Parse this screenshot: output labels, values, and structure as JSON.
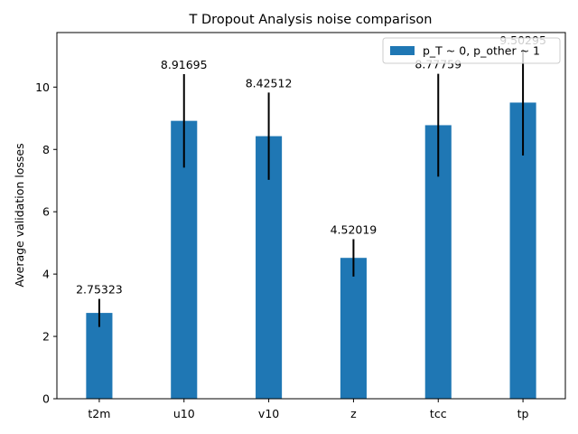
{
  "chart_data": {
    "type": "bar",
    "title": "T Dropout Analysis noise comparison",
    "xlabel": "",
    "ylabel": "Average validation losses",
    "categories": [
      "t2m",
      "u10",
      "v10",
      "z",
      "tcc",
      "tp"
    ],
    "series": [
      {
        "name": "p_T ~ 0, p_other ~ 1",
        "values": [
          2.75323,
          8.91695,
          8.42512,
          4.52019,
          8.77759,
          9.50295
        ],
        "labels": [
          "2.75323",
          "8.91695",
          "8.42512",
          "4.52019",
          "8.77759",
          "9.50295"
        ],
        "error": [
          0.45,
          1.5,
          1.4,
          0.6,
          1.65,
          1.7
        ],
        "color": "#1f77b4"
      }
    ],
    "ylim": [
      0,
      11.75
    ],
    "yticks": [
      0,
      2,
      4,
      6,
      8,
      10
    ],
    "ytick_labels": [
      "0",
      "2",
      "4",
      "6",
      "8",
      "10"
    ],
    "grid": false,
    "legend_position": "upper right",
    "errorbar_color": "#000000"
  }
}
